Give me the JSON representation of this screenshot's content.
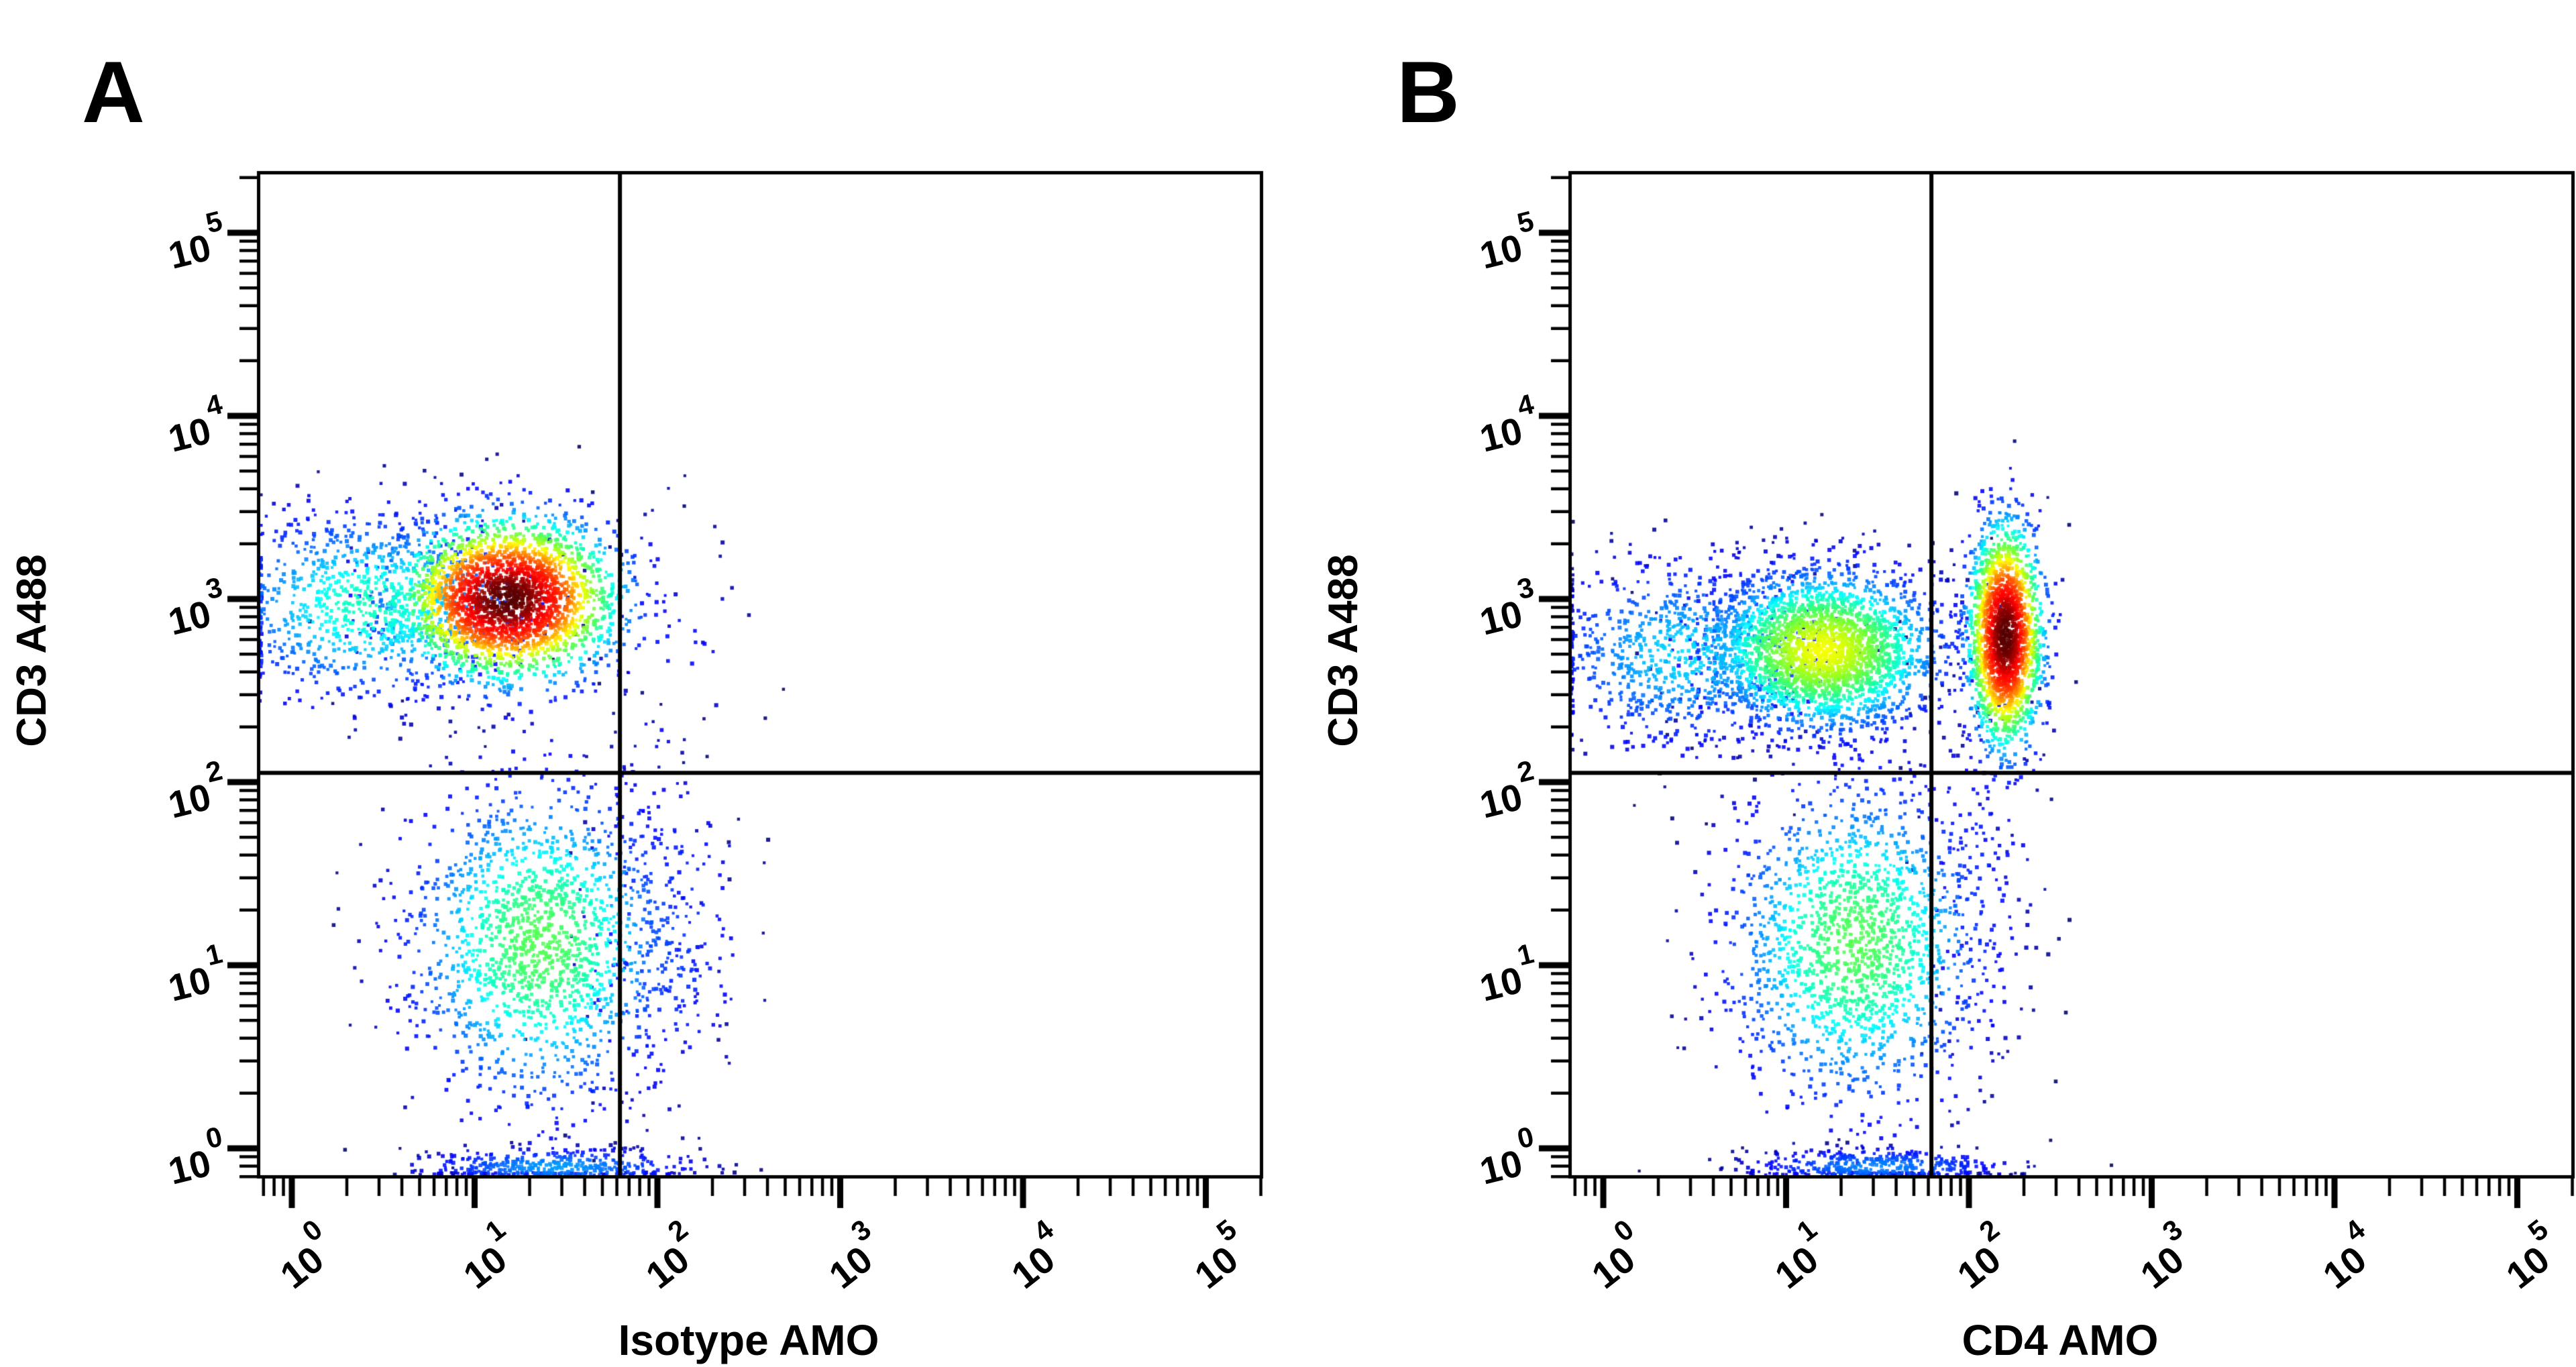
{
  "figure": {
    "background": "#ffffff",
    "ink": "#000000",
    "description": "Two-panel flow cytometry density dot plots"
  },
  "chart_data": [
    {
      "panel_label": "A",
      "type": "scatter",
      "xlabel": "Isotype AMO",
      "ylabel": "CD3 A488",
      "x_scale": "log10",
      "y_scale": "log10",
      "tick_base": "10",
      "x_tick_exponents": [
        "0",
        "1",
        "2",
        "3",
        "4",
        "5"
      ],
      "y_tick_exponents": [
        "0",
        "1",
        "2",
        "3",
        "4",
        "5"
      ],
      "x_range_log": [
        -0.19,
        5.31
      ],
      "y_range_log": [
        -0.16,
        5.34
      ],
      "grid": false,
      "legend": false,
      "quadrant_gate_log": {
        "x": 1.795,
        "y": 2.05
      },
      "colormap": "jet-density",
      "populations": [
        {
          "name": "cd3-positive-main",
          "cx": 1.18,
          "cy": 3.0,
          "sx": 0.3,
          "sy": 0.22,
          "n": 2700,
          "peak": 1.0
        },
        {
          "name": "cd3-positive-left-tail",
          "cx": 0.42,
          "cy": 2.97,
          "sx": 0.42,
          "sy": 0.26,
          "n": 950,
          "peak": 0.42
        },
        {
          "name": "cd3-negative-debris",
          "cx": 1.36,
          "cy": 1.12,
          "sx": 0.36,
          "sy": 0.44,
          "n": 1600,
          "peak": 0.5
        },
        {
          "name": "debris-right-spill",
          "cx": 2.02,
          "cy": 1.15,
          "sx": 0.24,
          "sy": 0.5,
          "n": 230,
          "peak": 0.22
        },
        {
          "name": "baseline-pileup",
          "cx": 1.45,
          "cy": -0.1,
          "sx": 0.38,
          "sy": 0.05,
          "n": 420,
          "peak": 0.3
        },
        {
          "name": "upper-right-sparse",
          "cx": 2.05,
          "cy": 2.75,
          "sx": 0.22,
          "sy": 0.45,
          "n": 45,
          "peak": 0.15
        }
      ]
    },
    {
      "panel_label": "B",
      "type": "scatter",
      "xlabel": "CD4 AMO",
      "ylabel": "CD3 A488",
      "x_scale": "log10",
      "y_scale": "log10",
      "tick_base": "10",
      "x_tick_exponents": [
        "0",
        "1",
        "2",
        "3",
        "4",
        "5"
      ],
      "y_tick_exponents": [
        "0",
        "1",
        "2",
        "3",
        "4",
        "5"
      ],
      "x_range_log": [
        -0.19,
        5.31
      ],
      "y_range_log": [
        -0.16,
        5.34
      ],
      "grid": false,
      "legend": false,
      "quadrant_gate_log": {
        "x": 1.795,
        "y": 2.05
      },
      "colormap": "jet-density",
      "populations": [
        {
          "name": "cd3-positive-cd4-negative-main",
          "cx": 1.2,
          "cy": 2.72,
          "sx": 0.32,
          "sy": 0.22,
          "n": 2700,
          "peak": 0.62
        },
        {
          "name": "cd3-positive-left-tail",
          "cx": 0.45,
          "cy": 2.7,
          "sx": 0.4,
          "sy": 0.26,
          "n": 850,
          "peak": 0.35
        },
        {
          "name": "cd3-positive-cd4-positive",
          "cx": 2.2,
          "cy": 2.8,
          "sx": 0.1,
          "sy": 0.3,
          "n": 2000,
          "peak": 1.0
        },
        {
          "name": "cd3-negative-debris",
          "cx": 1.38,
          "cy": 1.12,
          "sx": 0.35,
          "sy": 0.44,
          "n": 1700,
          "peak": 0.5
        },
        {
          "name": "baseline-pileup",
          "cx": 1.5,
          "cy": -0.1,
          "sx": 0.36,
          "sy": 0.05,
          "n": 430,
          "peak": 0.28
        },
        {
          "name": "lower-right-sparse",
          "cx": 2.05,
          "cy": 1.45,
          "sx": 0.18,
          "sy": 0.55,
          "n": 130,
          "peak": 0.18
        }
      ]
    }
  ]
}
